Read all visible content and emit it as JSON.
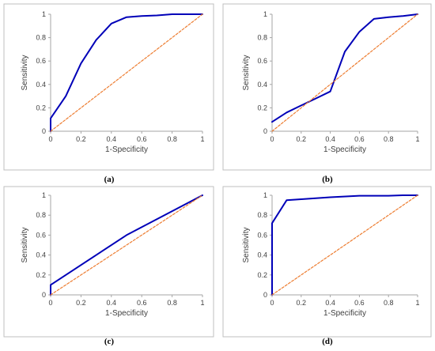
{
  "chart_data": [
    {
      "type": "line",
      "caption": "(a)",
      "xlabel": "1-Specificity",
      "ylabel": "Sensitivity",
      "xlim": [
        0,
        1
      ],
      "ylim": [
        0,
        1
      ],
      "xticks": [
        "0",
        "0.2",
        "0.4",
        "0.6",
        "0.8",
        "1"
      ],
      "yticks": [
        "0",
        "0.2",
        "0.4",
        "0.6",
        "0.8",
        "1"
      ],
      "grid": false,
      "series": [
        {
          "style": "solid",
          "color": "#0000b8",
          "x": [
            0,
            0,
            0.1,
            0.2,
            0.3,
            0.4,
            0.5,
            0.6,
            0.7,
            0.8,
            0.9,
            1
          ],
          "y": [
            0,
            0.11,
            0.3,
            0.58,
            0.78,
            0.92,
            0.975,
            0.985,
            0.99,
            1.0,
            1.0,
            1.0
          ]
        },
        {
          "style": "dashed",
          "color": "#ed7d31",
          "x": [
            0,
            1
          ],
          "y": [
            0,
            1
          ]
        }
      ]
    },
    {
      "type": "line",
      "caption": "(b)",
      "xlabel": "1-Specificity",
      "ylabel": "Sensitivity",
      "xlim": [
        0,
        1
      ],
      "ylim": [
        0,
        1
      ],
      "xticks": [
        "0",
        "0.2",
        "0.4",
        "0.6",
        "0.8",
        "1"
      ],
      "yticks": [
        "0",
        "0.2",
        "0.4",
        "0.6",
        "0.8",
        "1"
      ],
      "grid": false,
      "series": [
        {
          "style": "solid",
          "color": "#0000b8",
          "x": [
            0,
            0.1,
            0.2,
            0.3,
            0.4,
            0.5,
            0.6,
            0.7,
            0.8,
            0.9,
            1
          ],
          "y": [
            0.08,
            0.16,
            0.22,
            0.28,
            0.34,
            0.68,
            0.85,
            0.96,
            0.975,
            0.985,
            1.0
          ]
        },
        {
          "style": "dashed",
          "color": "#ed7d31",
          "x": [
            0,
            1
          ],
          "y": [
            0,
            1
          ]
        }
      ]
    },
    {
      "type": "line",
      "caption": "(c)",
      "xlabel": "1-Specificity",
      "ylabel": "Sensitivity",
      "xlim": [
        0,
        1
      ],
      "ylim": [
        0,
        1
      ],
      "xticks": [
        "0",
        "0.2",
        "0.4",
        "0.6",
        "0.8",
        "1"
      ],
      "yticks": [
        "0",
        "0.2",
        "0.4",
        "0.6",
        "0.8",
        "1"
      ],
      "grid": false,
      "series": [
        {
          "style": "solid",
          "color": "#0000b8",
          "x": [
            0,
            0,
            0.5,
            1
          ],
          "y": [
            0,
            0.1,
            0.6,
            1.0
          ]
        },
        {
          "style": "dashed",
          "color": "#ed7d31",
          "x": [
            0,
            1
          ],
          "y": [
            0,
            1
          ]
        }
      ]
    },
    {
      "type": "line",
      "caption": "(d)",
      "xlabel": "1-Specificity",
      "ylabel": "Sensitivity",
      "xlim": [
        0,
        1
      ],
      "ylim": [
        0,
        1
      ],
      "xticks": [
        "0",
        "0.2",
        "0.4",
        "0.6",
        "0.8",
        "1"
      ],
      "yticks": [
        "0",
        "0.2",
        "0.4",
        "0.6",
        "0.8",
        "1"
      ],
      "grid": false,
      "series": [
        {
          "style": "solid",
          "color": "#0000b8",
          "x": [
            0,
            0,
            0.1,
            0.2,
            0.4,
            0.6,
            0.8,
            0.9,
            1
          ],
          "y": [
            0,
            0.72,
            0.95,
            0.96,
            0.98,
            0.995,
            0.995,
            1.0,
            1.0
          ]
        },
        {
          "style": "dashed",
          "color": "#ed7d31",
          "x": [
            0,
            1
          ],
          "y": [
            0,
            1
          ]
        }
      ]
    }
  ]
}
